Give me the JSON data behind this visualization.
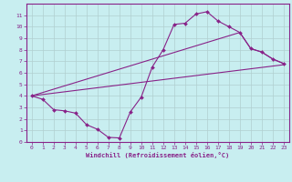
{
  "xlabel": "Windchill (Refroidissement éolien,°C)",
  "bg_color": "#c8eef0",
  "grid_color": "#b0cfd0",
  "line_color": "#882288",
  "xlim": [
    -0.5,
    23.5
  ],
  "ylim": [
    0,
    12
  ],
  "xticks": [
    0,
    1,
    2,
    3,
    4,
    5,
    6,
    7,
    8,
    9,
    10,
    11,
    12,
    13,
    14,
    15,
    16,
    17,
    18,
    19,
    20,
    21,
    22,
    23
  ],
  "yticks": [
    0,
    1,
    2,
    3,
    4,
    5,
    6,
    7,
    8,
    9,
    10,
    11
  ],
  "series": [
    {
      "x": [
        0,
        1,
        2,
        3,
        4,
        5,
        6,
        7,
        8,
        9,
        10,
        11,
        12,
        13,
        14,
        15,
        16,
        17,
        18,
        19,
        20,
        21,
        22,
        23
      ],
      "y": [
        4.0,
        3.7,
        2.8,
        2.7,
        2.5,
        1.5,
        1.1,
        0.4,
        0.35,
        2.6,
        3.9,
        6.5,
        8.0,
        10.2,
        10.3,
        11.1,
        11.3,
        10.5,
        10.0,
        9.5,
        8.1,
        7.8,
        7.2,
        6.8
      ],
      "has_markers": true
    },
    {
      "x": [
        0,
        23
      ],
      "y": [
        4.0,
        6.7
      ],
      "has_markers": false
    },
    {
      "x": [
        0,
        19,
        20,
        21,
        22,
        23
      ],
      "y": [
        4.0,
        9.5,
        8.1,
        7.8,
        7.2,
        6.8
      ],
      "has_markers": false
    }
  ]
}
